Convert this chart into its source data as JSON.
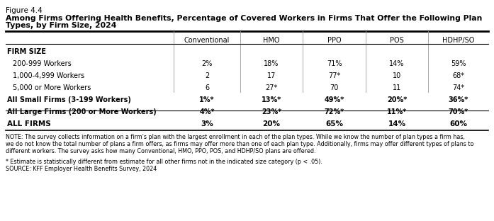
{
  "figure_label": "Figure 4.4",
  "title_line1": "Among Firms Offering Health Benefits, Percentage of Covered Workers in Firms That Offer the Following Plan",
  "title_line2": "Types, by Firm Size, 2024",
  "columns": [
    "Conventional",
    "HMO",
    "PPO",
    "POS",
    "HDHP/SO"
  ],
  "section_header": "FIRM SIZE",
  "rows": [
    {
      "label": "200-999 Workers",
      "values": [
        "2%",
        "18%",
        "71%",
        "14%",
        "59%"
      ],
      "bold": false,
      "indent": true
    },
    {
      "label": "1,000-4,999 Workers",
      "values": [
        "2",
        "17",
        "77*",
        "10",
        "68*"
      ],
      "bold": false,
      "indent": true
    },
    {
      "label": "5,000 or More Workers",
      "values": [
        "6",
        "27*",
        "70",
        "11",
        "74*"
      ],
      "bold": false,
      "indent": true
    },
    {
      "label": "All Small Firms (3-199 Workers)",
      "values": [
        "1%*",
        "13%*",
        "49%*",
        "20%*",
        "36%*"
      ],
      "bold": true,
      "indent": false
    },
    {
      "label": "All Large Firms (200 or More Workers)",
      "values": [
        "4%*",
        "23%*",
        "72%*",
        "11%*",
        "70%*"
      ],
      "bold": true,
      "indent": false
    }
  ],
  "all_firms_row": {
    "label": "ALL FIRMS",
    "values": [
      "3%",
      "20%",
      "65%",
      "14%",
      "60%"
    ],
    "bold": true
  },
  "note": "NOTE: The survey collects information on a firm's plan with the largest enrollment in each of the plan types. While we know the number of plan types a firm has,\nwe do not know the total number of plans a firm offers, as firms may offer more than one of each plan type. Additionally, firms may offer different types of plans to\ndifferent workers. The survey asks how many Conventional, HMO, PPO, POS, and HDHP/SO plans are offered.",
  "footnote": "* Estimate is statistically different from estimate for all other firms not in the indicated size category (p < .05).",
  "source": "SOURCE: KFF Employer Health Benefits Survey, 2024",
  "bg_color": "#ffffff",
  "text_color": "#000000"
}
